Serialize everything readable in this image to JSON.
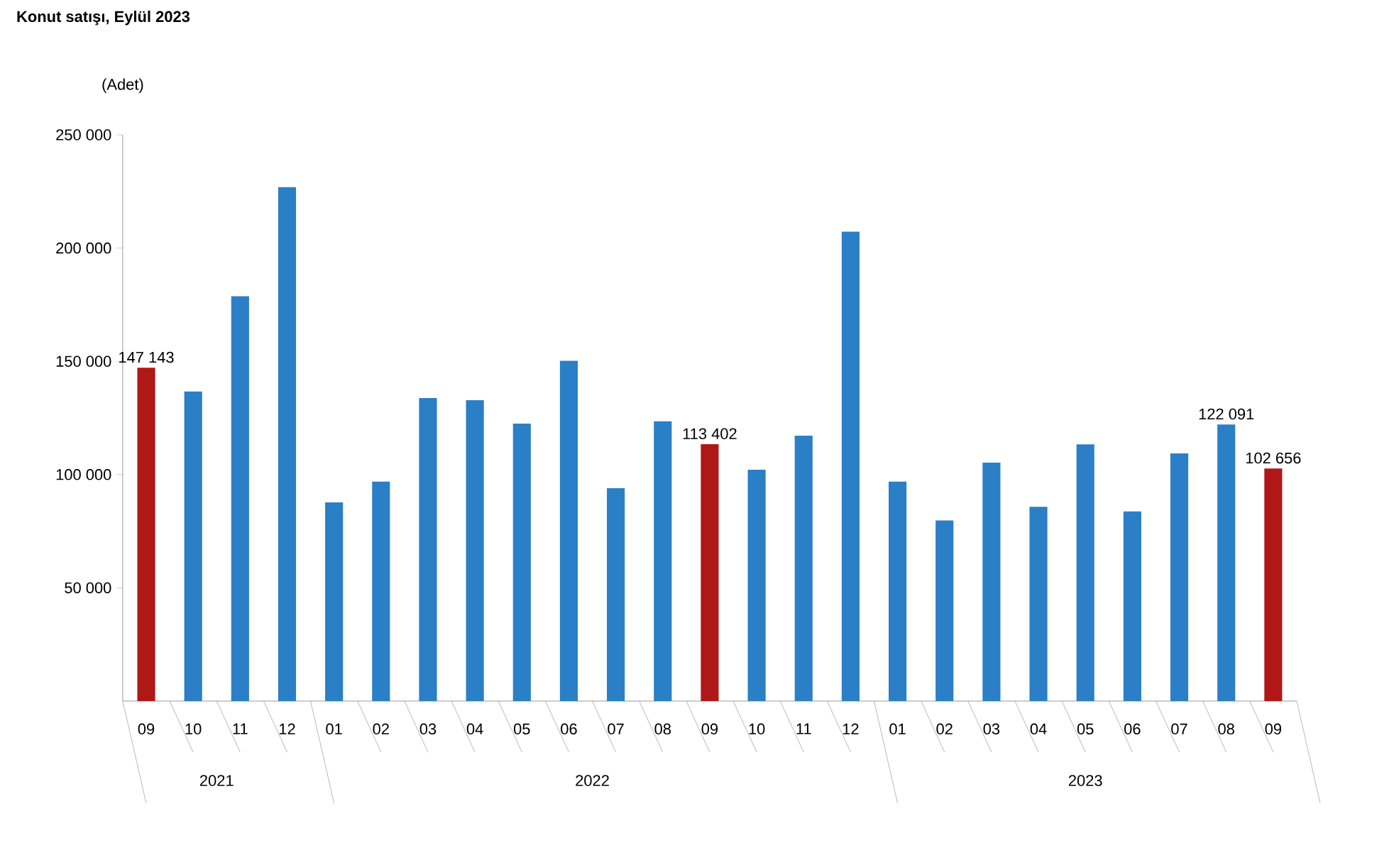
{
  "chart_data": {
    "type": "bar",
    "title": "Konut satışı, Eylül 2023",
    "ylabel": "(Adet)",
    "categories": [
      "09",
      "10",
      "11",
      "12",
      "01",
      "02",
      "03",
      "04",
      "05",
      "06",
      "07",
      "08",
      "09",
      "10",
      "11",
      "12",
      "01",
      "02",
      "03",
      "04",
      "05",
      "06",
      "07",
      "08",
      "09"
    ],
    "values": [
      147143,
      136700,
      178700,
      226900,
      87700,
      96900,
      133800,
      132800,
      122500,
      150200,
      94000,
      123500,
      113402,
      102100,
      117200,
      207200,
      96900,
      79700,
      105300,
      85800,
      113300,
      83700,
      109300,
      122091,
      102656
    ],
    "colors": [
      "#b01818",
      "#2a7fc6",
      "#2a7fc6",
      "#2a7fc6",
      "#2a7fc6",
      "#2a7fc6",
      "#2a7fc6",
      "#2a7fc6",
      "#2a7fc6",
      "#2a7fc6",
      "#2a7fc6",
      "#2a7fc6",
      "#b01818",
      "#2a7fc6",
      "#2a7fc6",
      "#2a7fc6",
      "#2a7fc6",
      "#2a7fc6",
      "#2a7fc6",
      "#2a7fc6",
      "#2a7fc6",
      "#2a7fc6",
      "#2a7fc6",
      "#2a7fc6",
      "#b01818"
    ],
    "value_labels": [
      "147 143",
      null,
      null,
      null,
      null,
      null,
      null,
      null,
      null,
      null,
      null,
      null,
      "113 402",
      null,
      null,
      null,
      null,
      null,
      null,
      null,
      null,
      null,
      null,
      "122 091",
      "102 656"
    ],
    "ylim": [
      0,
      250000
    ],
    "yticks": [
      {
        "value": 50000,
        "label": "50 000"
      },
      {
        "value": 100000,
        "label": "100 000"
      },
      {
        "value": 150000,
        "label": "150 000"
      },
      {
        "value": 200000,
        "label": "200 000"
      },
      {
        "value": 250000,
        "label": "250 000"
      }
    ],
    "annotations": [
      "2021",
      "2022",
      "2023"
    ]
  }
}
